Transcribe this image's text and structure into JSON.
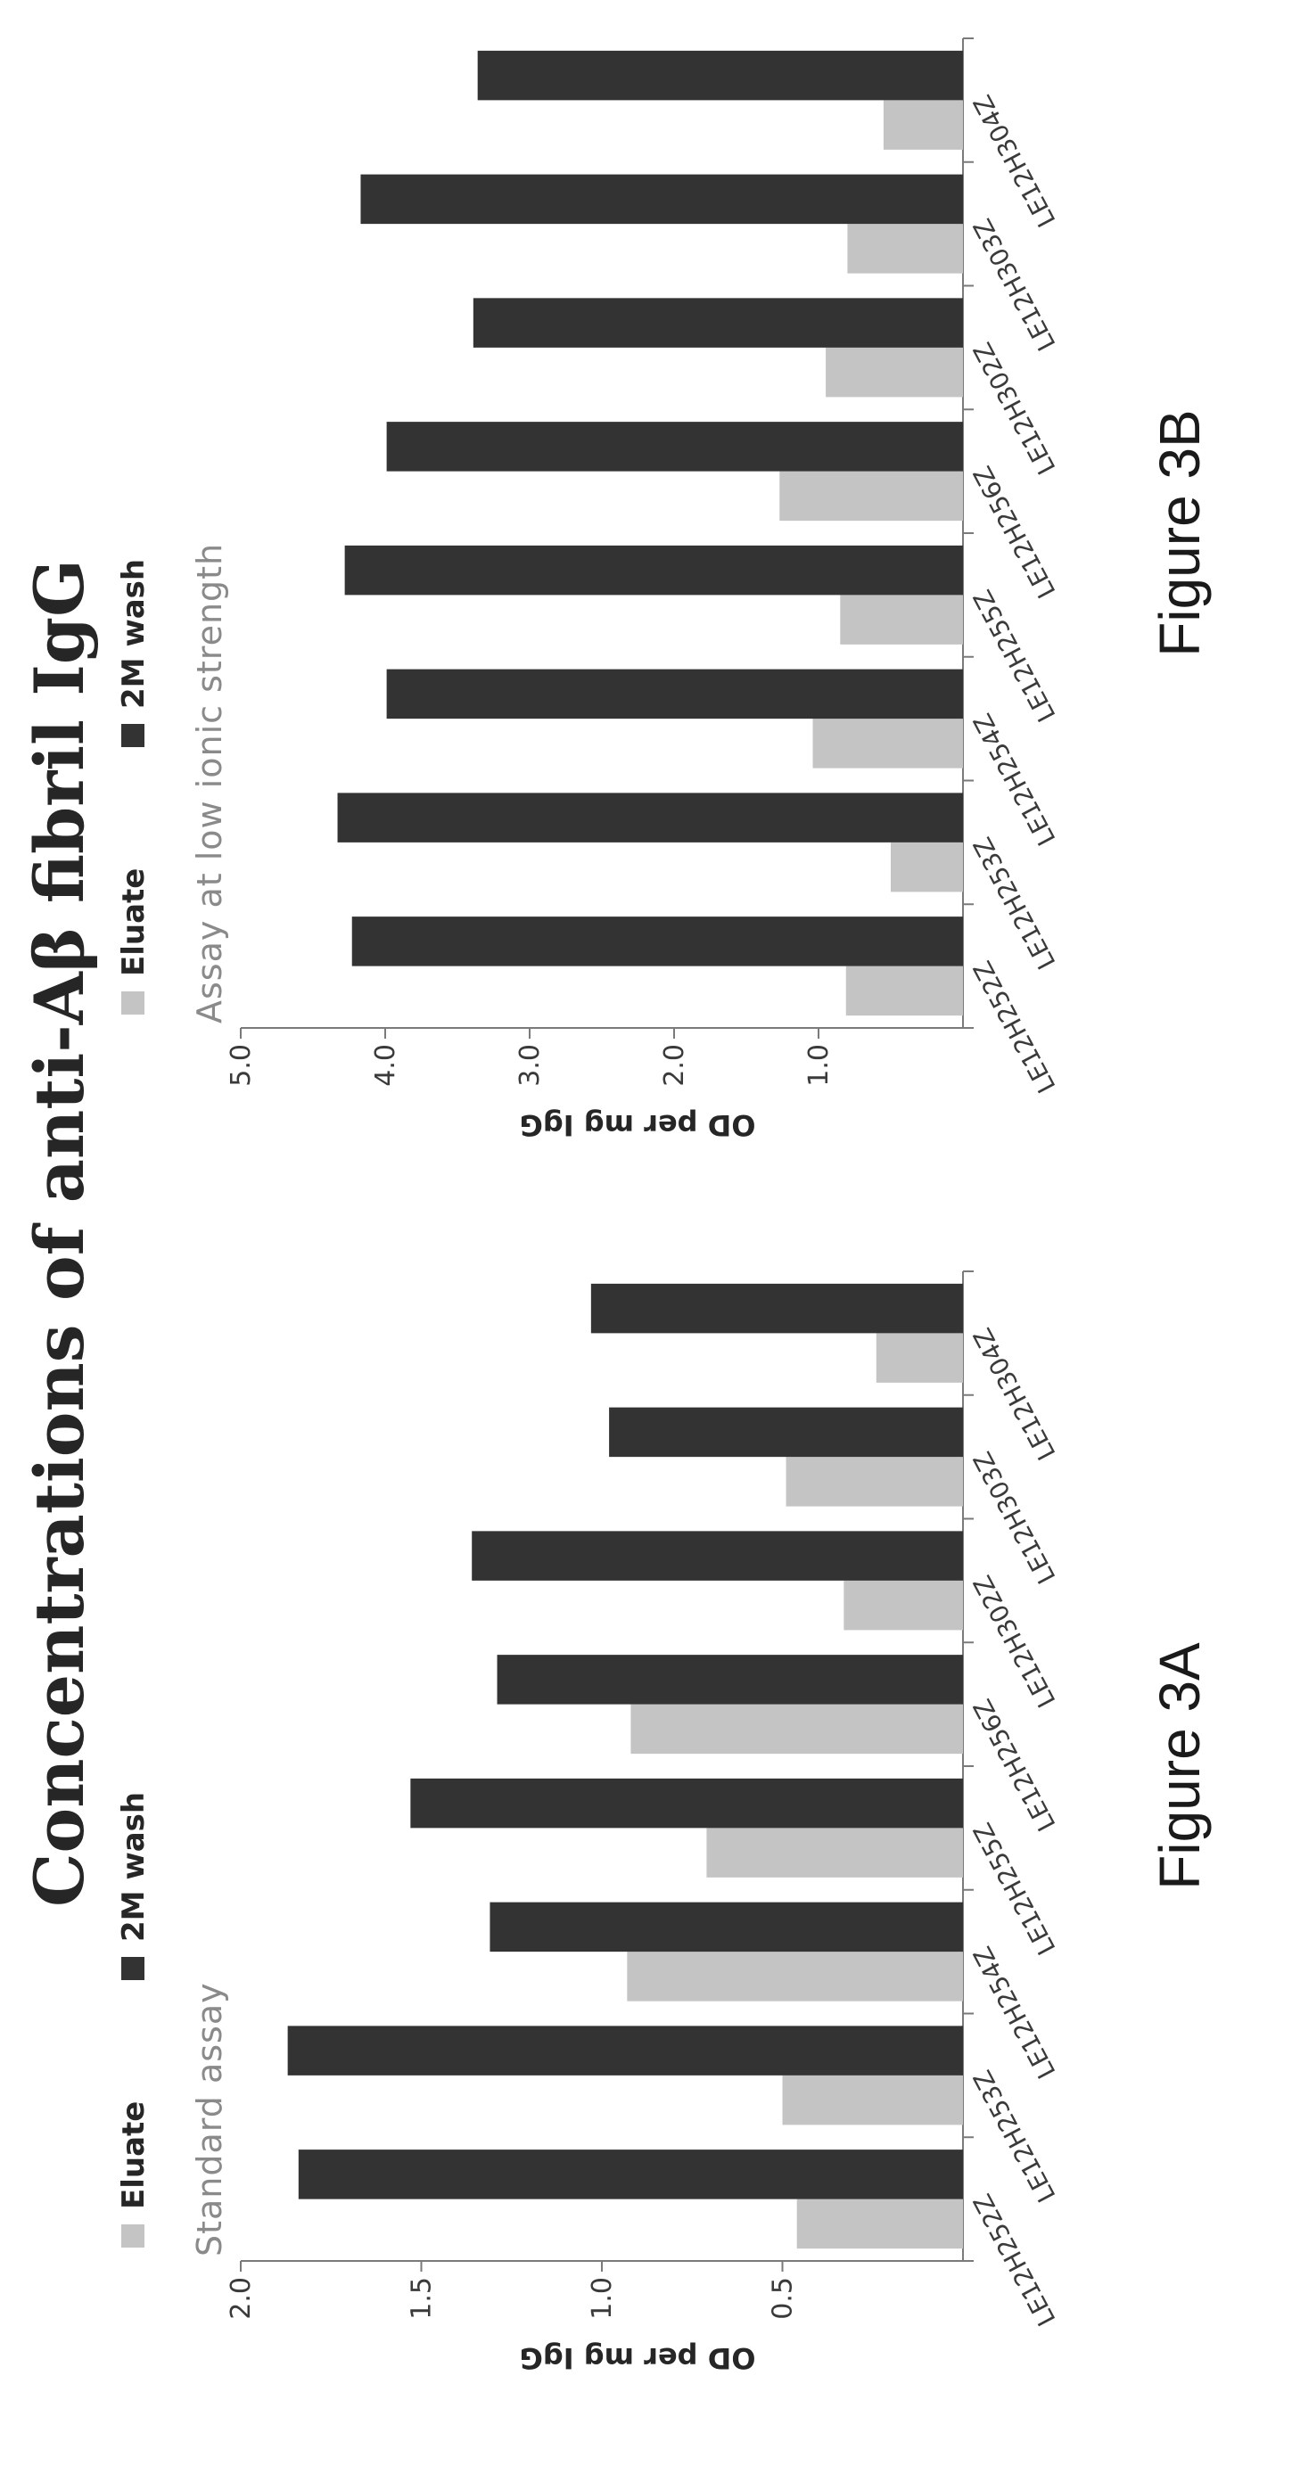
{
  "title": "Concentrations of anti-Aβ fibril IgG",
  "colors": {
    "eluate": "#c4c4c4",
    "wash": "#333333",
    "axis": "#7a7a7a"
  },
  "chart_data": [
    {
      "type": "bar",
      "subtitle": "Standard assay",
      "figure_label": "Figure 3A",
      "ylabel": "OD per mg IgG",
      "ylim": [
        0,
        2.0
      ],
      "yticks": [
        "0.5",
        "1.0",
        "1.5",
        "2.0"
      ],
      "categories": [
        "LE12H252Z",
        "LE12H253Z",
        "LE12H254Z",
        "LE12H255Z",
        "LE12H256Z",
        "LE12H302Z",
        "LE12H303Z",
        "LE12H304Z"
      ],
      "series": [
        {
          "name": "Eluate",
          "values": [
            0.46,
            0.5,
            0.93,
            0.71,
            0.92,
            0.33,
            0.49,
            0.24
          ]
        },
        {
          "name": "2M wash",
          "values": [
            1.84,
            1.87,
            1.31,
            1.53,
            1.29,
            1.36,
            0.98,
            1.03
          ]
        }
      ]
    },
    {
      "type": "bar",
      "subtitle": "Assay at low ionic strength",
      "figure_label": "Figure 3B",
      "ylabel": "OD per mg IgG",
      "ylim": [
        0,
        5.0
      ],
      "yticks": [
        "1.0",
        "2.0",
        "3.0",
        "4.0",
        "5.0"
      ],
      "categories": [
        "LE12H252Z",
        "LE12H253Z",
        "LE12H254Z",
        "LE12H255Z",
        "LE12H256Z",
        "LE12H302Z",
        "LE12H303Z",
        "LE12H304Z"
      ],
      "series": [
        {
          "name": "Eluate",
          "values": [
            0.81,
            0.5,
            1.04,
            0.85,
            1.27,
            0.95,
            0.8,
            0.55
          ]
        },
        {
          "name": "2M wash",
          "values": [
            4.23,
            4.33,
            3.99,
            4.28,
            3.99,
            3.39,
            4.17,
            3.36
          ]
        }
      ]
    }
  ]
}
